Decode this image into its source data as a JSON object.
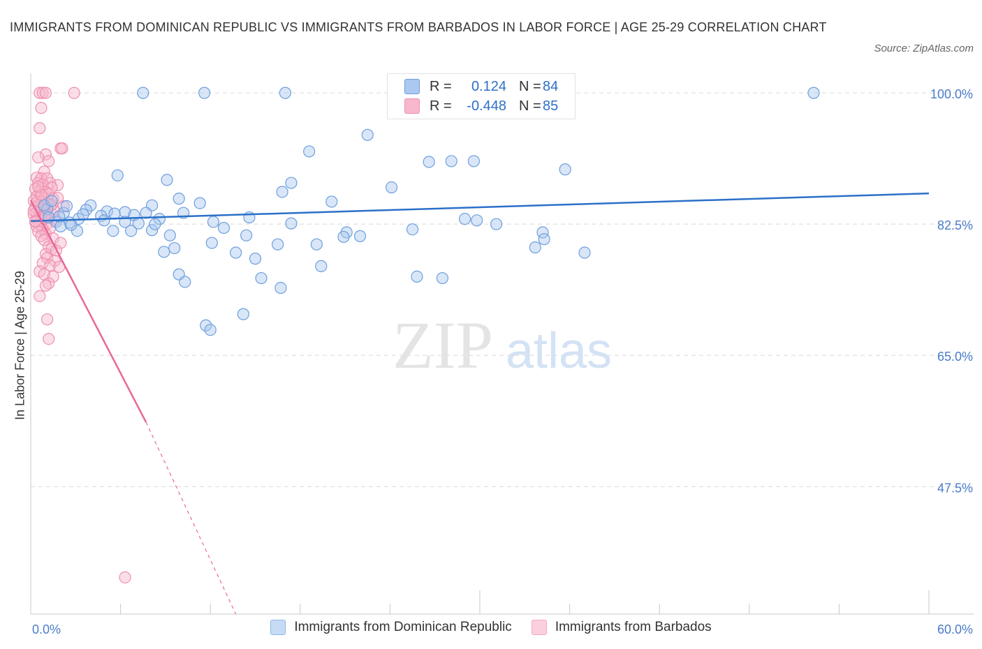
{
  "title": "IMMIGRANTS FROM DOMINICAN REPUBLIC VS IMMIGRANTS FROM BARBADOS IN LABOR FORCE | AGE 25-29 CORRELATION CHART",
  "source": "Source: ZipAtlas.com",
  "watermark": {
    "zip": "ZIP",
    "atlas": "atlas"
  },
  "legend": {
    "r_label": "R =",
    "n_label": "N =",
    "series": [
      {
        "r": "0.124",
        "n": "84"
      },
      {
        "r": "-0.448",
        "n": "85"
      }
    ]
  },
  "colors": {
    "blue_fill": "#aac8f0",
    "blue_stroke": "#6d9fdc",
    "blue_line": "#2b70c9",
    "pink_fill": "#f7b7cc",
    "pink_stroke": "#ee8fae",
    "pink_line": "#e8679a",
    "axis_text": "#4a7cc9",
    "grid": "#d9d9d9"
  },
  "chart_data": {
    "type": "scatter",
    "title": "IMMIGRANTS FROM DOMINICAN REPUBLIC VS IMMIGRANTS FROM BARBADOS IN LABOR FORCE | AGE 25-29 CORRELATION CHART",
    "xlabel": "",
    "ylabel": "In Labor Force | Age 25-29",
    "xlim": [
      0,
      60
    ],
    "ylim": [
      30.5,
      101.5
    ],
    "x_tick_labels": [
      "0.0%",
      "60.0%"
    ],
    "y_ticks": [
      100.0,
      82.5,
      65.0,
      47.5
    ],
    "y_tick_labels": [
      "100.0%",
      "82.5%",
      "65.0%",
      "47.5%"
    ],
    "legend_position": "bottom-center",
    "series": [
      {
        "name": "Immigrants from Dominican Republic",
        "r": 0.124,
        "n": 84,
        "trend": {
          "x0": 0,
          "y0": 82.9,
          "x1": 60,
          "y1": 86.6
        },
        "points": [
          [
            7.5,
            100.0
          ],
          [
            11.6,
            100.0
          ],
          [
            17.0,
            100.0
          ],
          [
            52.3,
            100.0
          ],
          [
            22.5,
            94.4
          ],
          [
            18.6,
            92.2
          ],
          [
            26.6,
            90.8
          ],
          [
            28.1,
            90.9
          ],
          [
            29.6,
            90.9
          ],
          [
            35.7,
            89.8
          ],
          [
            5.8,
            89.0
          ],
          [
            9.1,
            88.4
          ],
          [
            17.4,
            88.0
          ],
          [
            24.1,
            87.4
          ],
          [
            16.8,
            86.8
          ],
          [
            9.9,
            85.9
          ],
          [
            20.1,
            85.5
          ],
          [
            11.3,
            85.3
          ],
          [
            4.0,
            85.0
          ],
          [
            8.1,
            85.0
          ],
          [
            1.1,
            84.5
          ],
          [
            3.7,
            84.4
          ],
          [
            5.1,
            84.2
          ],
          [
            6.3,
            84.1
          ],
          [
            7.7,
            84.0
          ],
          [
            10.2,
            84.0
          ],
          [
            2.2,
            84.0
          ],
          [
            4.7,
            83.6
          ],
          [
            6.9,
            83.7
          ],
          [
            3.2,
            83.2
          ],
          [
            8.6,
            83.2
          ],
          [
            14.6,
            83.4
          ],
          [
            29.0,
            83.2
          ],
          [
            29.8,
            83.0
          ],
          [
            4.9,
            83.0
          ],
          [
            6.3,
            82.8
          ],
          [
            2.6,
            82.7
          ],
          [
            1.7,
            82.8
          ],
          [
            1.2,
            83.4
          ],
          [
            1.9,
            83.5
          ],
          [
            7.2,
            82.6
          ],
          [
            12.2,
            82.8
          ],
          [
            17.4,
            82.6
          ],
          [
            31.1,
            82.5
          ],
          [
            2.0,
            82.2
          ],
          [
            3.1,
            81.6
          ],
          [
            5.5,
            81.6
          ],
          [
            6.7,
            81.6
          ],
          [
            8.1,
            81.7
          ],
          [
            12.9,
            82.0
          ],
          [
            25.5,
            81.8
          ],
          [
            34.2,
            81.4
          ],
          [
            21.1,
            81.4
          ],
          [
            9.3,
            81.0
          ],
          [
            14.4,
            81.0
          ],
          [
            20.9,
            80.8
          ],
          [
            22.0,
            80.9
          ],
          [
            12.1,
            80.0
          ],
          [
            16.5,
            79.8
          ],
          [
            9.6,
            79.3
          ],
          [
            19.1,
            79.8
          ],
          [
            33.7,
            79.4
          ],
          [
            34.3,
            80.5
          ],
          [
            8.9,
            78.8
          ],
          [
            13.7,
            78.7
          ],
          [
            15.0,
            77.9
          ],
          [
            37.0,
            78.7
          ],
          [
            19.4,
            76.9
          ],
          [
            9.9,
            75.8
          ],
          [
            25.8,
            75.5
          ],
          [
            10.3,
            74.8
          ],
          [
            15.4,
            75.3
          ],
          [
            27.5,
            75.3
          ],
          [
            16.7,
            74.0
          ],
          [
            14.2,
            70.5
          ],
          [
            11.7,
            69.0
          ],
          [
            12.0,
            68.4
          ],
          [
            2.7,
            82.4
          ],
          [
            3.5,
            83.8
          ],
          [
            0.9,
            85.0
          ],
          [
            1.4,
            85.6
          ],
          [
            2.4,
            84.9
          ],
          [
            5.6,
            83.9
          ],
          [
            8.3,
            82.5
          ]
        ]
      },
      {
        "name": "Immigrants from Barbados",
        "r": -0.448,
        "n": 85,
        "trend": {
          "x0": 0,
          "y0": 85.7,
          "x1": 7.7,
          "y1": 56.1
        },
        "trend_dashed": {
          "x0": 7.7,
          "y0": 56.1,
          "x1": 13.7,
          "y1": 30.5
        },
        "points": [
          [
            0.6,
            100.0
          ],
          [
            0.8,
            100.0
          ],
          [
            1.0,
            100.0
          ],
          [
            2.9,
            100.0
          ],
          [
            0.7,
            98.0
          ],
          [
            0.6,
            95.3
          ],
          [
            2.0,
            92.6
          ],
          [
            2.1,
            92.6
          ],
          [
            1.0,
            91.8
          ],
          [
            0.5,
            91.4
          ],
          [
            1.2,
            90.9
          ],
          [
            0.9,
            89.5
          ],
          [
            0.4,
            88.7
          ],
          [
            0.7,
            88.6
          ],
          [
            1.1,
            88.6
          ],
          [
            0.5,
            88.0
          ],
          [
            1.3,
            88.0
          ],
          [
            0.8,
            87.8
          ],
          [
            1.8,
            87.7
          ],
          [
            1.4,
            87.4
          ],
          [
            0.3,
            87.2
          ],
          [
            0.6,
            86.9
          ],
          [
            1.0,
            86.8
          ],
          [
            1.2,
            86.5
          ],
          [
            0.4,
            86.2
          ],
          [
            0.9,
            86.0
          ],
          [
            1.5,
            85.9
          ],
          [
            0.2,
            85.6
          ],
          [
            0.7,
            85.5
          ],
          [
            1.1,
            85.3
          ],
          [
            0.5,
            85.0
          ],
          [
            1.3,
            85.0
          ],
          [
            2.2,
            84.9
          ],
          [
            0.3,
            84.7
          ],
          [
            0.8,
            84.5
          ],
          [
            1.0,
            84.3
          ],
          [
            0.4,
            84.1
          ],
          [
            0.6,
            84.0
          ],
          [
            1.4,
            83.9
          ],
          [
            0.2,
            83.8
          ],
          [
            0.9,
            83.6
          ],
          [
            1.2,
            83.4
          ],
          [
            0.5,
            83.2
          ],
          [
            0.7,
            83.0
          ],
          [
            1.6,
            83.0
          ],
          [
            0.3,
            82.8
          ],
          [
            1.1,
            82.6
          ],
          [
            0.6,
            82.4
          ],
          [
            0.4,
            82.2
          ],
          [
            1.3,
            82.0
          ],
          [
            0.8,
            81.8
          ],
          [
            0.5,
            81.5
          ],
          [
            1.0,
            81.2
          ],
          [
            0.7,
            80.9
          ],
          [
            1.5,
            80.6
          ],
          [
            0.9,
            80.4
          ],
          [
            2.0,
            80.0
          ],
          [
            1.2,
            79.5
          ],
          [
            1.4,
            79.2
          ],
          [
            1.7,
            79.0
          ],
          [
            1.0,
            78.5
          ],
          [
            1.1,
            78.0
          ],
          [
            1.6,
            77.6
          ],
          [
            0.8,
            77.3
          ],
          [
            1.3,
            77.0
          ],
          [
            1.9,
            76.8
          ],
          [
            0.6,
            76.2
          ],
          [
            0.9,
            75.8
          ],
          [
            1.5,
            75.5
          ],
          [
            1.2,
            74.6
          ],
          [
            1.0,
            74.3
          ],
          [
            0.6,
            72.9
          ],
          [
            1.1,
            69.8
          ],
          [
            1.2,
            67.2
          ],
          [
            6.3,
            35.4
          ],
          [
            0.4,
            85.4
          ],
          [
            0.9,
            84.8
          ],
          [
            1.0,
            83.7
          ],
          [
            0.3,
            82.9
          ],
          [
            1.6,
            84.2
          ],
          [
            0.7,
            86.4
          ],
          [
            1.4,
            85.1
          ],
          [
            0.5,
            87.5
          ],
          [
            1.8,
            86.0
          ],
          [
            0.2,
            84.3
          ]
        ]
      }
    ]
  }
}
